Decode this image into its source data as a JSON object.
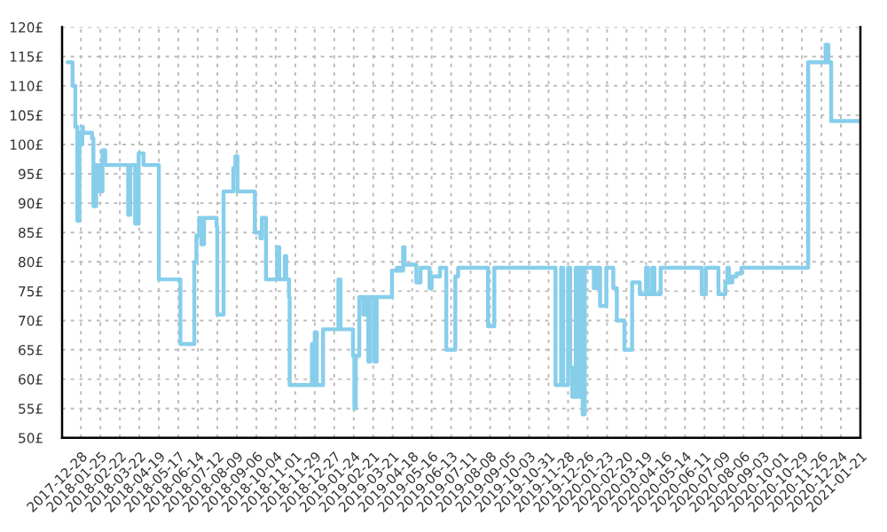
{
  "chart_data": {
    "type": "step",
    "color": "#87ceeb",
    "grid": true,
    "line_style": "solid",
    "marker": "none",
    "x": [
      "2017-12-09",
      "2017-12-16",
      "2017-12-20",
      "2017-12-23",
      "2017-12-26",
      "2017-12-28",
      "2017-12-30",
      "2017-12-31",
      "2018-01-13",
      "2018-01-15",
      "2018-01-19",
      "2018-01-24",
      "2018-01-28",
      "2018-02-01",
      "2018-03-06",
      "2018-03-09",
      "2018-03-16",
      "2018-03-21",
      "2018-03-28",
      "2018-04-19",
      "2018-05-20",
      "2018-06-09",
      "2018-06-12",
      "2018-06-16",
      "2018-06-19",
      "2018-06-23",
      "2018-07-11",
      "2018-07-12",
      "2018-07-21",
      "2018-08-04",
      "2018-08-07",
      "2018-08-10",
      "2018-09-04",
      "2018-09-12",
      "2018-09-14",
      "2018-09-20",
      "2018-10-06",
      "2018-10-09",
      "2018-10-17",
      "2018-10-19",
      "2018-10-23",
      "2018-10-24",
      "2018-11-25",
      "2018-11-28",
      "2018-11-29",
      "2018-12-02",
      "2018-12-11",
      "2019-01-02",
      "2019-01-05",
      "2019-01-23",
      "2019-01-25",
      "2019-01-27",
      "2019-02-01",
      "2019-02-07",
      "2019-02-10",
      "2019-02-14",
      "2019-02-17",
      "2019-02-23",
      "2019-02-26",
      "2019-03-20",
      "2019-03-27",
      "2019-03-31",
      "2019-04-05",
      "2019-04-07",
      "2019-04-24",
      "2019-04-30",
      "2019-05-13",
      "2019-05-16",
      "2019-05-28",
      "2019-06-06",
      "2019-06-19",
      "2019-06-23",
      "2019-08-05",
      "2019-08-14",
      "2019-11-10",
      "2019-11-18",
      "2019-11-21",
      "2019-11-28",
      "2019-12-01",
      "2019-12-04",
      "2019-12-09",
      "2019-12-12",
      "2019-12-15",
      "2019-12-19",
      "2019-12-22",
      "2020-01-04",
      "2020-01-08",
      "2020-01-13",
      "2020-01-22",
      "2020-02-01",
      "2020-02-06",
      "2020-02-17",
      "2020-02-28",
      "2020-03-10",
      "2020-03-19",
      "2020-03-22",
      "2020-03-28",
      "2020-03-31",
      "2020-04-09",
      "2020-06-07",
      "2020-06-13",
      "2020-07-01",
      "2020-07-11",
      "2020-07-14",
      "2020-07-16",
      "2020-07-21",
      "2020-07-27",
      "2020-08-03",
      "2020-11-07",
      "2020-12-02",
      "2020-12-06",
      "2020-12-10",
      "2021-01-20"
    ],
    "values": [
      114,
      110,
      103,
      87,
      102,
      100,
      103,
      102,
      101,
      89.5,
      96.5,
      92,
      99,
      96.5,
      88,
      96.5,
      86.5,
      98.5,
      96.5,
      77,
      66,
      80,
      84.5,
      87.5,
      83,
      87.5,
      86,
      71,
      92,
      96,
      98,
      92,
      85,
      84,
      87.5,
      77,
      82.5,
      77,
      81,
      77,
      74,
      59,
      66,
      59,
      68,
      59,
      68.5,
      77,
      68.5,
      64,
      55,
      64,
      74,
      71,
      74,
      63,
      74,
      63,
      74,
      78.5,
      79,
      78.5,
      82.5,
      79.5,
      76.5,
      79,
      75.5,
      77.5,
      79,
      65,
      77.5,
      79,
      69,
      79,
      59,
      79,
      59,
      79,
      62,
      57,
      79,
      57,
      79,
      54,
      79,
      75.5,
      79,
      72.5,
      79,
      75.5,
      70,
      65,
      76.5,
      74.5,
      79,
      74.5,
      79,
      74.5,
      79,
      74.5,
      79,
      74.5,
      76.5,
      79,
      76.5,
      77.5,
      78,
      79,
      114,
      117,
      114,
      104,
      104
    ],
    "xlim": [
      "2017-12-01",
      "2021-01-21"
    ],
    "xticks": [
      "2017-12-28",
      "2018-01-25",
      "2018-02-22",
      "2018-03-22",
      "2018-04-19",
      "2018-05-17",
      "2018-06-14",
      "2018-07-12",
      "2018-08-09",
      "2018-09-06",
      "2018-10-04",
      "2018-11-01",
      "2018-11-29",
      "2018-12-27",
      "2019-01-24",
      "2019-02-21",
      "2019-03-21",
      "2019-04-18",
      "2019-05-16",
      "2019-06-13",
      "2019-07-11",
      "2019-08-08",
      "2019-09-05",
      "2019-10-03",
      "2019-10-31",
      "2019-11-28",
      "2019-12-26",
      "2020-01-23",
      "2020-02-20",
      "2020-03-19",
      "2020-04-16",
      "2020-05-14",
      "2020-06-11",
      "2020-07-09",
      "2020-08-06",
      "2020-09-03",
      "2020-10-01",
      "2020-10-29",
      "2020-11-26",
      "2020-12-24",
      "2021-01-21"
    ],
    "ylim": [
      50,
      120
    ],
    "yticks": [
      {
        "value": 50,
        "label": "50£"
      },
      {
        "value": 55,
        "label": "55£"
      },
      {
        "value": 60,
        "label": "60£"
      },
      {
        "value": 65,
        "label": "65£"
      },
      {
        "value": 70,
        "label": "70£"
      },
      {
        "value": 75,
        "label": "75£"
      },
      {
        "value": 80,
        "label": "80£"
      },
      {
        "value": 85,
        "label": "85£"
      },
      {
        "value": 90,
        "label": "90£"
      },
      {
        "value": 95,
        "label": "95£"
      },
      {
        "value": 100,
        "label": "100£"
      },
      {
        "value": 105,
        "label": "105£"
      },
      {
        "value": 110,
        "label": "110£"
      },
      {
        "value": 115,
        "label": "115£"
      },
      {
        "value": 120,
        "label": "120£"
      }
    ]
  }
}
